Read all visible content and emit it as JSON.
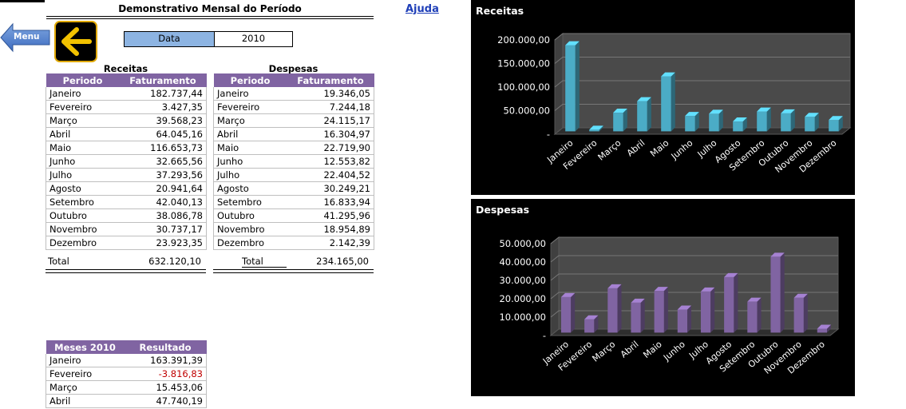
{
  "header": {
    "title": "Demonstrativo Mensal do Período",
    "help": "Ajuda"
  },
  "nav": {
    "menu_label": "Menu",
    "back_icon": "arrow-left-icon"
  },
  "date": {
    "label": "Data",
    "value": "2010"
  },
  "receitas": {
    "caption": "Receitas",
    "columns": [
      "Periodo",
      "Faturamento"
    ],
    "rows": [
      [
        "Janeiro",
        "182.737,44"
      ],
      [
        "Fevereiro",
        "3.427,35"
      ],
      [
        "Março",
        "39.568,23"
      ],
      [
        "Abril",
        "64.045,16"
      ],
      [
        "Maio",
        "116.653,73"
      ],
      [
        "Junho",
        "32.665,56"
      ],
      [
        "Julho",
        "37.293,56"
      ],
      [
        "Agosto",
        "20.941,64"
      ],
      [
        "Setembro",
        "42.040,13"
      ],
      [
        "Outubro",
        "38.086,78"
      ],
      [
        "Novembro",
        "30.737,17"
      ],
      [
        "Dezembro",
        "23.923,35"
      ]
    ],
    "total_label": "Total",
    "total_value": "632.120,10"
  },
  "despesas": {
    "caption": "Despesas",
    "columns": [
      "Periodo",
      "Faturamento"
    ],
    "rows": [
      [
        "Janeiro",
        "19.346,05"
      ],
      [
        "Fevereiro",
        "7.244,18"
      ],
      [
        "Março",
        "24.115,17"
      ],
      [
        "Abril",
        "16.304,97"
      ],
      [
        "Maio",
        "22.719,90"
      ],
      [
        "Junho",
        "12.553,82"
      ],
      [
        "Julho",
        "22.404,52"
      ],
      [
        "Agosto",
        "30.249,21"
      ],
      [
        "Setembro",
        "16.833,94"
      ],
      [
        "Outubro",
        "41.295,96"
      ],
      [
        "Novembro",
        "18.954,89"
      ],
      [
        "Dezembro",
        "2.142,39"
      ]
    ],
    "total_label": "Total",
    "total_value": "234.165,00"
  },
  "resultado": {
    "columns": [
      "Meses 2010",
      "Resultado"
    ],
    "rows": [
      [
        "Janeiro",
        "163.391,39",
        false
      ],
      [
        "Fevereiro",
        "-3.816,83",
        true
      ],
      [
        "Março",
        "15.453,06",
        false
      ],
      [
        "Abril",
        "47.740,19",
        false
      ]
    ]
  },
  "chart_data": [
    {
      "type": "bar",
      "title": "Receitas",
      "categories": [
        "Janeiro",
        "Fevereiro",
        "Março",
        "Abril",
        "Maio",
        "Junho",
        "Julho",
        "Agosto",
        "Setembro",
        "Outubro",
        "Novembro",
        "Dezembro"
      ],
      "values": [
        182737.44,
        3427.35,
        39568.23,
        64045.16,
        116653.73,
        32665.56,
        37293.56,
        20941.64,
        42040.13,
        38086.78,
        30737.17,
        23923.35
      ],
      "ylim": [
        0,
        200000
      ],
      "yticks": [
        "-",
        "50.000,00",
        "100.000,00",
        "150.000,00",
        "200.000,00"
      ],
      "color": "#4bacc6",
      "grid": true
    },
    {
      "type": "bar",
      "title": "Despesas",
      "categories": [
        "Janeiro",
        "Fevereiro",
        "Março",
        "Abril",
        "Maio",
        "Junho",
        "Julho",
        "Agosto",
        "Setembro",
        "Outubro",
        "Novembro",
        "Dezembro"
      ],
      "values": [
        19346.05,
        7244.18,
        24115.17,
        16304.97,
        22719.9,
        12553.82,
        22404.52,
        30249.21,
        16833.94,
        41295.96,
        18954.89,
        2142.39
      ],
      "ylim": [
        0,
        50000
      ],
      "yticks": [
        "-",
        "10.000,00",
        "20.000,00",
        "30.000,00",
        "40.000,00",
        "50.000,00"
      ],
      "color": "#8064a2",
      "grid": true
    }
  ]
}
